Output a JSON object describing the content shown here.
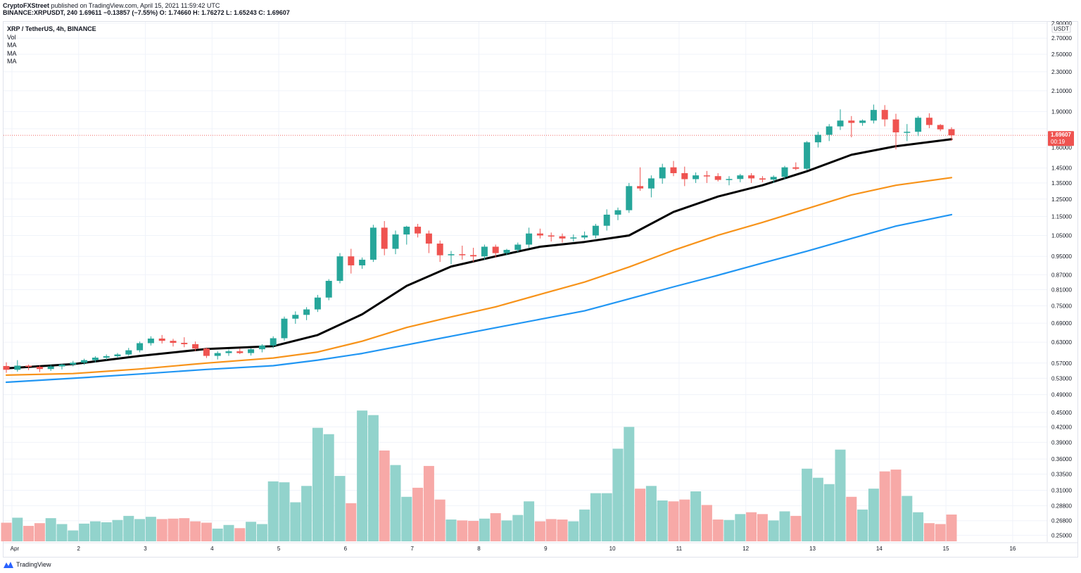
{
  "header": {
    "author": "CryptoFXStreet",
    "published": "published on TradingView.com, April 15, 2021 11:59:42 UTC",
    "ohlc_line": "BINANCE:XRPUSDT, 240  1.69611  −0.13857 (−7.55%)  O: 1.74660  H: 1.76272  L: 1.65243  C: 1.69607"
  },
  "legend": {
    "symbol": "XRP / TetherUS, 4h, BINANCE",
    "indicators": [
      "Vol",
      "MA",
      "MA",
      "MA"
    ]
  },
  "footer": {
    "brand": "TradingView"
  },
  "colors": {
    "up": "#26a69a",
    "down": "#ef5350",
    "vol_up": "#92d3cc",
    "vol_down": "#f7a9a7",
    "ma_fast": "#000000",
    "ma_mid": "#f7931a",
    "ma_slow": "#2196f3",
    "price_line": "#ef5350"
  },
  "chart_data": {
    "type": "candlestick",
    "title": "XRP / TetherUS, 4h, BINANCE",
    "timeframe": "240",
    "y_unit": "USDT",
    "y_scale": "log",
    "ylim": [
      0.242,
      2.92
    ],
    "x_tick_labels": [
      {
        "label": "Apr",
        "bar": 0.5
      },
      {
        "label": "2",
        "bar": 6.5
      },
      {
        "label": "3",
        "bar": 12.5
      },
      {
        "label": "4",
        "bar": 18.5
      },
      {
        "label": "5",
        "bar": 24.5
      },
      {
        "label": "6",
        "bar": 30.5
      },
      {
        "label": "7",
        "bar": 36.5
      },
      {
        "label": "8",
        "bar": 42.5
      },
      {
        "label": "9",
        "bar": 48.5
      },
      {
        "label": "10",
        "bar": 54.5
      },
      {
        "label": "11",
        "bar": 60.5
      },
      {
        "label": "12",
        "bar": 66.5
      },
      {
        "label": "13",
        "bar": 72.5
      },
      {
        "label": "14",
        "bar": 78.5
      },
      {
        "label": "15",
        "bar": 84.5
      },
      {
        "label": "16",
        "bar": 90.5
      }
    ],
    "y_tick_labels": [
      "2.90000",
      "2.70000",
      "2.50000",
      "2.30000",
      "2.10000",
      "1.90000",
      "1.75000",
      "1.60000",
      "1.45000",
      "1.35000",
      "1.25000",
      "1.15000",
      "1.05000",
      "0.95000",
      "0.87000",
      "0.81000",
      "0.75000",
      "0.69000",
      "0.63000",
      "0.57000",
      "0.53000",
      "0.49000",
      "0.45000",
      "0.42000",
      "0.39000",
      "0.36000",
      "0.33500",
      "0.31000",
      "0.28800",
      "0.26800",
      "0.25000"
    ],
    "axis_unit_label": "USDT",
    "last_price": "1.69607",
    "countdown": "00:19",
    "candles": [
      [
        0.562,
        0.572,
        0.544,
        0.552,
        2.05
      ],
      [
        0.552,
        0.578,
        0.547,
        0.563,
        2.6
      ],
      [
        0.563,
        0.566,
        0.551,
        0.56,
        1.7
      ],
      [
        0.56,
        0.563,
        0.546,
        0.554,
        2.0
      ],
      [
        0.554,
        0.565,
        0.549,
        0.561,
        2.55
      ],
      [
        0.561,
        0.568,
        0.553,
        0.566,
        1.9
      ],
      [
        0.566,
        0.576,
        0.561,
        0.571,
        1.2
      ],
      [
        0.571,
        0.582,
        0.565,
        0.578,
        1.95
      ],
      [
        0.578,
        0.589,
        0.572,
        0.585,
        2.2
      ],
      [
        0.585,
        0.594,
        0.578,
        0.589,
        2.1
      ],
      [
        0.589,
        0.598,
        0.584,
        0.594,
        2.35
      ],
      [
        0.594,
        0.613,
        0.59,
        0.606,
        2.8
      ],
      [
        0.606,
        0.632,
        0.6,
        0.627,
        2.45
      ],
      [
        0.627,
        0.648,
        0.62,
        0.641,
        2.7
      ],
      [
        0.641,
        0.652,
        0.626,
        0.634,
        2.45
      ],
      [
        0.634,
        0.64,
        0.617,
        0.628,
        2.5
      ],
      [
        0.628,
        0.645,
        0.615,
        0.624,
        2.55
      ],
      [
        0.624,
        0.632,
        0.604,
        0.611,
        2.2
      ],
      [
        0.611,
        0.614,
        0.584,
        0.59,
        2.05
      ],
      [
        0.59,
        0.603,
        0.58,
        0.598,
        1.4
      ],
      [
        0.598,
        0.608,
        0.59,
        0.603,
        1.8
      ],
      [
        0.603,
        0.611,
        0.595,
        0.598,
        1.45
      ],
      [
        0.598,
        0.612,
        0.591,
        0.609,
        2.15
      ],
      [
        0.609,
        0.624,
        0.6,
        0.62,
        1.9
      ],
      [
        0.62,
        0.648,
        0.612,
        0.642,
        6.6
      ],
      [
        0.642,
        0.712,
        0.635,
        0.705,
        6.5
      ],
      [
        0.705,
        0.73,
        0.688,
        0.718,
        4.3
      ],
      [
        0.718,
        0.745,
        0.7,
        0.737,
        6.1
      ],
      [
        0.737,
        0.79,
        0.728,
        0.78,
        12.5
      ],
      [
        0.78,
        0.852,
        0.77,
        0.845,
        11.8
      ],
      [
        0.845,
        0.965,
        0.835,
        0.95,
        7.2
      ],
      [
        0.95,
        0.985,
        0.875,
        0.91,
        4.2
      ],
      [
        0.91,
        0.945,
        0.895,
        0.935,
        14.4
      ],
      [
        0.935,
        1.105,
        0.925,
        1.09,
        13.9
      ],
      [
        1.09,
        1.125,
        0.955,
        0.985,
        10.0
      ],
      [
        0.985,
        1.075,
        0.96,
        1.055,
        8.4
      ],
      [
        1.055,
        1.1,
        1.005,
        1.095,
        4.9
      ],
      [
        1.095,
        1.11,
        1.04,
        1.06,
        5.9
      ],
      [
        1.06,
        1.075,
        0.965,
        1.01,
        8.3
      ],
      [
        1.01,
        1.025,
        0.925,
        0.955,
        4.6
      ],
      [
        0.955,
        0.975,
        0.915,
        0.96,
        2.4
      ],
      [
        0.96,
        1.0,
        0.935,
        0.956,
        2.3
      ],
      [
        0.956,
        0.99,
        0.925,
        0.95,
        2.25
      ],
      [
        0.95,
        1.005,
        0.935,
        0.995,
        2.5
      ],
      [
        0.995,
        1.005,
        0.945,
        0.965,
        3.1
      ],
      [
        0.965,
        0.985,
        0.955,
        0.98,
        2.3
      ],
      [
        0.98,
        1.015,
        0.97,
        1.005,
        2.9
      ],
      [
        1.005,
        1.09,
        0.99,
        1.06,
        4.4
      ],
      [
        1.06,
        1.085,
        1.035,
        1.05,
        2.2
      ],
      [
        1.05,
        1.065,
        1.02,
        1.046,
        2.45
      ],
      [
        1.046,
        1.06,
        1.015,
        1.035,
        2.4
      ],
      [
        1.035,
        1.055,
        1.02,
        1.04,
        2.2
      ],
      [
        1.04,
        1.07,
        1.03,
        1.05,
        3.5
      ],
      [
        1.05,
        1.11,
        1.035,
        1.1,
        5.3
      ],
      [
        1.1,
        1.19,
        1.075,
        1.16,
        5.3
      ],
      [
        1.16,
        1.2,
        1.13,
        1.185,
        10.2
      ],
      [
        1.185,
        1.35,
        1.17,
        1.33,
        12.6
      ],
      [
        1.33,
        1.455,
        1.3,
        1.315,
        5.8
      ],
      [
        1.315,
        1.4,
        1.26,
        1.38,
        6.1
      ],
      [
        1.38,
        1.48,
        1.345,
        1.455,
        4.5
      ],
      [
        1.455,
        1.5,
        1.395,
        1.415,
        4.4
      ],
      [
        1.415,
        1.46,
        1.33,
        1.375,
        4.6
      ],
      [
        1.375,
        1.42,
        1.35,
        1.4,
        5.5
      ],
      [
        1.4,
        1.43,
        1.35,
        1.395,
        4.0
      ],
      [
        1.395,
        1.415,
        1.36,
        1.37,
        2.4
      ],
      [
        1.37,
        1.395,
        1.335,
        1.376,
        2.35
      ],
      [
        1.376,
        1.41,
        1.355,
        1.4,
        3.0
      ],
      [
        1.4,
        1.415,
        1.35,
        1.38,
        3.2
      ],
      [
        1.38,
        1.395,
        1.355,
        1.372,
        3.0
      ],
      [
        1.372,
        1.4,
        1.35,
        1.39,
        2.3
      ],
      [
        1.39,
        1.465,
        1.375,
        1.455,
        3.3
      ],
      [
        1.455,
        1.49,
        1.435,
        1.445,
        2.8
      ],
      [
        1.445,
        1.65,
        1.435,
        1.64,
        8.0
      ],
      [
        1.64,
        1.725,
        1.6,
        1.7,
        7.0
      ],
      [
        1.7,
        1.79,
        1.65,
        1.77,
        6.3
      ],
      [
        1.77,
        1.92,
        1.74,
        1.82,
        10.1
      ],
      [
        1.82,
        1.86,
        1.68,
        1.8,
        4.9
      ],
      [
        1.8,
        1.83,
        1.775,
        1.82,
        3.5
      ],
      [
        1.82,
        1.965,
        1.795,
        1.915,
        5.8
      ],
      [
        1.915,
        1.96,
        1.77,
        1.83,
        7.7
      ],
      [
        1.83,
        1.88,
        1.585,
        1.72,
        7.9
      ],
      [
        1.72,
        1.79,
        1.65,
        1.725,
        5.0
      ],
      [
        1.725,
        1.86,
        1.69,
        1.845,
        3.2
      ],
      [
        1.845,
        1.885,
        1.755,
        1.782,
        2.0
      ],
      [
        1.782,
        1.79,
        1.73,
        1.745,
        1.9
      ],
      [
        1.7466,
        1.76272,
        1.65243,
        1.69607,
        2.95
      ]
    ],
    "ma_fast": [
      [
        0,
        0.556
      ],
      [
        6,
        0.567
      ],
      [
        12,
        0.59
      ],
      [
        18,
        0.61
      ],
      [
        24,
        0.618
      ],
      [
        28,
        0.652
      ],
      [
        32,
        0.72
      ],
      [
        36,
        0.825
      ],
      [
        40,
        0.905
      ],
      [
        44,
        0.95
      ],
      [
        48,
        0.995
      ],
      [
        52,
        1.018
      ],
      [
        56,
        1.05
      ],
      [
        60,
        1.175
      ],
      [
        64,
        1.265
      ],
      [
        68,
        1.335
      ],
      [
        72,
        1.428
      ],
      [
        76,
        1.545
      ],
      [
        80,
        1.61
      ],
      [
        85,
        1.665
      ]
    ],
    "ma_mid": [
      [
        0,
        0.538
      ],
      [
        6,
        0.542
      ],
      [
        12,
        0.554
      ],
      [
        18,
        0.57
      ],
      [
        24,
        0.584
      ],
      [
        28,
        0.601
      ],
      [
        32,
        0.633
      ],
      [
        36,
        0.676
      ],
      [
        40,
        0.711
      ],
      [
        44,
        0.746
      ],
      [
        48,
        0.792
      ],
      [
        52,
        0.84
      ],
      [
        56,
        0.903
      ],
      [
        60,
        0.978
      ],
      [
        64,
        1.051
      ],
      [
        68,
        1.118
      ],
      [
        72,
        1.194
      ],
      [
        76,
        1.275
      ],
      [
        80,
        1.335
      ],
      [
        85,
        1.385
      ]
    ],
    "ma_slow": [
      [
        0,
        0.52
      ],
      [
        6,
        0.53
      ],
      [
        12,
        0.541
      ],
      [
        18,
        0.553
      ],
      [
        24,
        0.563
      ],
      [
        28,
        0.578
      ],
      [
        32,
        0.597
      ],
      [
        36,
        0.622
      ],
      [
        40,
        0.648
      ],
      [
        44,
        0.675
      ],
      [
        48,
        0.703
      ],
      [
        52,
        0.732
      ],
      [
        56,
        0.775
      ],
      [
        60,
        0.821
      ],
      [
        64,
        0.868
      ],
      [
        68,
        0.92
      ],
      [
        72,
        0.974
      ],
      [
        76,
        1.035
      ],
      [
        80,
        1.098
      ],
      [
        85,
        1.16
      ]
    ]
  }
}
